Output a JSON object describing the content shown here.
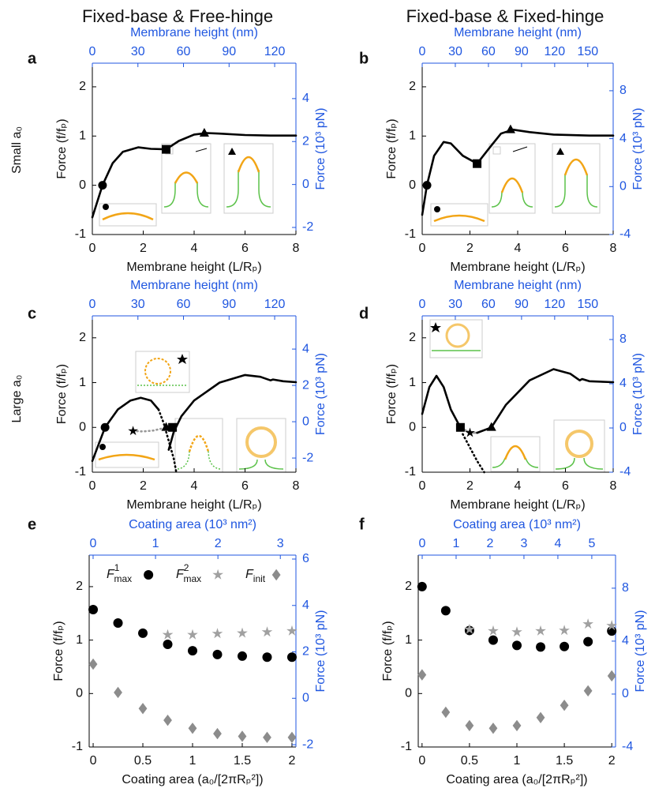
{
  "column_titles": [
    "Fixed-base & Free-hinge",
    "Fixed-base & Fixed-hinge"
  ],
  "row_labels": [
    "Small a₀",
    "Large a₀"
  ],
  "chart_data": [
    {
      "type": "line",
      "label": "a",
      "x2label": "Membrane height (nm)",
      "xlabel": "Membrane height (L/Rₚ)",
      "ylabel": "Force (f/fₚ)",
      "y2label": "Force (10³ pN)",
      "xlim": [
        0,
        8
      ],
      "xticks": [
        0,
        2,
        4,
        6,
        8
      ],
      "x2lim": [
        0,
        134
      ],
      "x2ticks": [
        0,
        30,
        60,
        90,
        120
      ],
      "ylim": [
        -1,
        2.48
      ],
      "yticks": [
        -1,
        0,
        1,
        2
      ],
      "y2lim": [
        -2.33,
        5.65
      ],
      "y2ticks": [
        -2,
        0,
        2,
        4
      ],
      "series": [
        {
          "color": "#000000",
          "dash": "solid",
          "x": [
            0,
            0.4,
            0.8,
            1.2,
            1.8,
            2.3,
            2.9,
            3.4,
            4,
            4.5,
            5,
            6,
            7,
            8
          ],
          "values": [
            -0.65,
            0,
            0.45,
            0.68,
            0.77,
            0.74,
            0.73,
            0.9,
            1.03,
            1.06,
            1.05,
            1.02,
            1.01,
            1.01
          ]
        },
        {
          "marker": "circle",
          "color": "#000000",
          "x": [
            0.4
          ],
          "values": [
            0
          ]
        },
        {
          "marker": "square",
          "color": "#000000",
          "x": [
            2.9
          ],
          "values": [
            0.73
          ]
        },
        {
          "marker": "triangle",
          "color": "#000000",
          "x": [
            4.4
          ],
          "values": [
            1.06
          ]
        }
      ]
    },
    {
      "type": "line",
      "label": "b",
      "x2label": "Membrane height (nm)",
      "xlabel": "Membrane height (L/Rₚ)",
      "ylabel": "Force (f/fₚ)",
      "y2label": "Force (10³ pN)",
      "xlim": [
        0,
        8
      ],
      "xticks": [
        0,
        2,
        4,
        6,
        8
      ],
      "x2lim": [
        0,
        173
      ],
      "x2ticks": [
        0,
        30,
        60,
        90,
        120,
        150
      ],
      "ylim": [
        -1,
        2.48
      ],
      "yticks": [
        -1,
        0,
        1,
        2
      ],
      "y2lim": [
        -4,
        10.3
      ],
      "y2ticks": [
        -4,
        0,
        4,
        8
      ],
      "series": [
        {
          "color": "#000000",
          "dash": "solid",
          "x": [
            0,
            0.2,
            0.5,
            0.9,
            1.2,
            1.7,
            2.3,
            2.8,
            3.3,
            3.8,
            4.5,
            5.5,
            7,
            8
          ],
          "values": [
            -0.6,
            0,
            0.6,
            0.88,
            0.85,
            0.6,
            0.44,
            0.75,
            1.05,
            1.13,
            1.08,
            1.03,
            1.01,
            1.01
          ]
        },
        {
          "marker": "circle",
          "color": "#000000",
          "x": [
            0.2
          ],
          "values": [
            0
          ]
        },
        {
          "marker": "square",
          "color": "#000000",
          "x": [
            2.3
          ],
          "values": [
            0.44
          ]
        },
        {
          "marker": "triangle",
          "color": "#000000",
          "x": [
            3.7
          ],
          "values": [
            1.13
          ]
        }
      ]
    },
    {
      "type": "line",
      "label": "c",
      "x2label": "Membrane height (nm)",
      "xlabel": "Membrane height (L/Rₚ)",
      "ylabel": "Force (f/fₚ)",
      "y2label": "Force (10³ pN)",
      "xlim": [
        0,
        8
      ],
      "xticks": [
        0,
        2,
        4,
        6,
        8
      ],
      "x2lim": [
        0,
        134
      ],
      "x2ticks": [
        0,
        30,
        60,
        90,
        120
      ],
      "ylim": [
        -1,
        2.49
      ],
      "yticks": [
        -1,
        0,
        1,
        2
      ],
      "y2lim": [
        -2.78,
        5.83
      ],
      "y2ticks": [
        -2,
        0,
        2,
        4
      ],
      "series": [
        {
          "color": "#000000",
          "dash": "solid",
          "x": [
            0,
            0.5,
            1,
            1.5,
            1.9,
            2.3,
            2.6
          ],
          "values": [
            -0.75,
            0,
            0.4,
            0.6,
            0.66,
            0.6,
            0.4
          ]
        },
        {
          "color": "#000000",
          "dash": "dotted",
          "x": [
            2.6,
            2.8,
            3,
            3.2,
            3.3
          ],
          "values": [
            0.4,
            0.1,
            -0.3,
            -0.7,
            -1
          ]
        },
        {
          "color": "#999999",
          "dash": "dotted",
          "x": [
            1.6,
            2,
            2.4,
            2.7
          ],
          "values": [
            -0.08,
            -0.09,
            -0.07,
            -0.03
          ]
        },
        {
          "color": "#000000",
          "dash": "solid",
          "x": [
            3,
            3.2,
            3.5,
            4,
            5,
            6,
            6.6,
            7,
            7.1,
            7.5,
            8
          ],
          "values": [
            -0.5,
            -0.1,
            0.25,
            0.6,
            1.0,
            1.17,
            1.13,
            1.05,
            1.07,
            1.03,
            1.01
          ]
        },
        {
          "marker": "circle",
          "color": "#000000",
          "x": [
            0.5
          ],
          "values": [
            0
          ]
        },
        {
          "marker": "star",
          "color": "#000000",
          "x": [
            1.6
          ],
          "values": [
            -0.08
          ]
        },
        {
          "marker": "triangle",
          "color": "#000000",
          "x": [
            2.9
          ],
          "values": [
            0
          ]
        },
        {
          "marker": "square",
          "color": "#000000",
          "x": [
            3.15
          ],
          "values": [
            0
          ]
        }
      ]
    },
    {
      "type": "line",
      "label": "d",
      "x2label": "Membrane height (nm)",
      "xlabel": "Membrane height (L/Rₚ)",
      "ylabel": "Force (f/fₚ)",
      "y2label": "Force (10³ pN)",
      "xlim": [
        0,
        8
      ],
      "xticks": [
        0,
        2,
        4,
        6,
        8
      ],
      "x2lim": [
        0,
        173
      ],
      "x2ticks": [
        0,
        30,
        60,
        90,
        120,
        150
      ],
      "ylim": [
        -1,
        2.49
      ],
      "yticks": [
        -1,
        0,
        1,
        2
      ],
      "y2lim": [
        -4,
        10.14
      ],
      "y2ticks": [
        -4,
        0,
        4,
        8
      ],
      "series": [
        {
          "color": "#000000",
          "dash": "solid",
          "x": [
            0,
            0.3,
            0.6,
            0.9,
            1.2,
            1.6
          ],
          "values": [
            0.3,
            0.9,
            1.15,
            0.9,
            0.4,
            0
          ]
        },
        {
          "color": "#000000",
          "dash": "dotted",
          "x": [
            1.7,
            2,
            2.3,
            2.6
          ],
          "values": [
            -0.15,
            -0.45,
            -0.75,
            -1
          ]
        },
        {
          "color": "#999999",
          "dash": "solid",
          "x": [
            1.6,
            2,
            2.3
          ],
          "values": [
            0,
            -0.12,
            -0.12
          ]
        },
        {
          "color": "#000000",
          "dash": "solid",
          "x": [
            2.3,
            2.9,
            3.5,
            4.5,
            5.5,
            6.2,
            6.6,
            6.7,
            7,
            8
          ],
          "values": [
            -0.12,
            0,
            0.5,
            1.05,
            1.3,
            1.2,
            1.05,
            1.08,
            1.03,
            1.01
          ]
        },
        {
          "marker": "square",
          "color": "#000000",
          "x": [
            1.6
          ],
          "values": [
            0
          ]
        },
        {
          "marker": "star",
          "color": "#000000",
          "x": [
            2
          ],
          "values": [
            -0.12
          ]
        },
        {
          "marker": "triangle",
          "color": "#000000",
          "x": [
            2.9
          ],
          "values": [
            0
          ]
        }
      ]
    },
    {
      "type": "scatter",
      "label": "e",
      "x2label": "Coating area (10³ nm²)",
      "xlabel": "Coating area (a₀/[2πRₚ²])",
      "ylabel": "Force (f/fₚ)",
      "y2label": "Force (10³ pN)",
      "xlim": [
        -0.04,
        2.04
      ],
      "xticks": [
        0,
        0.5,
        1,
        1.5,
        2
      ],
      "x2lim": [
        -0.063,
        3.25
      ],
      "x2ticks": [
        0,
        1,
        2,
        3
      ],
      "ylim": [
        -1,
        2.59
      ],
      "yticks": [
        -1,
        0,
        1,
        2
      ],
      "y2lim": [
        -2.1,
        6.17
      ],
      "y2ticks": [
        -2,
        0,
        2,
        4,
        6
      ],
      "x": [
        0,
        0.25,
        0.5,
        0.75,
        1,
        1.25,
        1.5,
        1.75,
        2
      ],
      "series": [
        {
          "name": "F",
          "name_sup": "1",
          "name_sub": "max",
          "marker": "circle",
          "color": "#000000",
          "values": [
            1.57,
            1.32,
            1.13,
            0.92,
            0.8,
            0.73,
            0.7,
            0.68,
            0.68
          ]
        },
        {
          "name": "F",
          "name_sup": "2",
          "name_sub": "max",
          "marker": "star",
          "color": "#a0a0a0",
          "values": [
            null,
            null,
            null,
            1.1,
            1.1,
            1.12,
            1.13,
            1.15,
            1.17
          ]
        },
        {
          "name": "F",
          "name_sub": "init",
          "marker": "diamond",
          "color": "#8c8c8c",
          "values": [
            0.55,
            0.02,
            -0.28,
            -0.5,
            -0.65,
            -0.75,
            -0.8,
            -0.82,
            -0.82
          ]
        }
      ]
    },
    {
      "type": "scatter",
      "label": "f",
      "x2label": "Coating area (10³ nm²)",
      "xlabel": "Coating area (a₀/[2πRₚ²])",
      "ylabel": "Force (f/fₚ)",
      "y2label": "Force (10³ pN)",
      "xlim": [
        -0.04,
        2.04
      ],
      "xticks": [
        0,
        0.5,
        1,
        1.5,
        2
      ],
      "x2lim": [
        -0.116,
        5.7
      ],
      "x2ticks": [
        0,
        1,
        2,
        3,
        4,
        5
      ],
      "ylim": [
        -1,
        2.59
      ],
      "yticks": [
        -1,
        0,
        1,
        2
      ],
      "y2lim": [
        -4,
        10.5
      ],
      "y2ticks": [
        -4,
        0,
        4,
        8
      ],
      "x": [
        0,
        0.25,
        0.5,
        0.75,
        1,
        1.25,
        1.5,
        1.75,
        2
      ],
      "series": [
        {
          "marker": "circle",
          "color": "#000000",
          "values": [
            2.0,
            1.55,
            1.18,
            1.0,
            0.9,
            0.87,
            0.88,
            0.97,
            1.17
          ]
        },
        {
          "marker": "star",
          "color": "#a0a0a0",
          "values": [
            null,
            null,
            1.2,
            1.17,
            1.15,
            1.17,
            1.18,
            1.3,
            1.27
          ]
        },
        {
          "marker": "diamond",
          "color": "#8c8c8c",
          "values": [
            0.35,
            -0.35,
            -0.6,
            -0.65,
            -0.6,
            -0.45,
            -0.22,
            0.05,
            0.33
          ]
        }
      ]
    }
  ]
}
